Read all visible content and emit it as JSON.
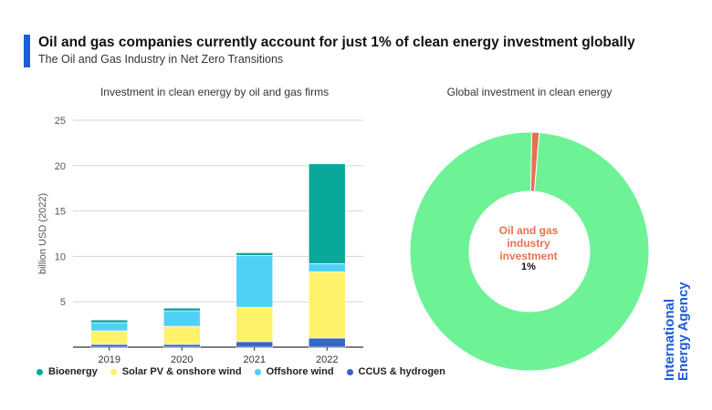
{
  "header": {
    "title": "Oil and gas companies currently account for just 1% of clean energy investment globally",
    "subtitle": "The Oil and Gas Industry in Net Zero Transitions"
  },
  "logo": {
    "line1": "International",
    "line2": "Energy Agency"
  },
  "legend": [
    {
      "label": "Bioenergy",
      "color": "#0aa89a"
    },
    {
      "label": "Solar PV & onshore wind",
      "color": "#fff26b"
    },
    {
      "label": "Offshore wind",
      "color": "#4fd1f7"
    },
    {
      "label": "CCUS & hydrogen",
      "color": "#3567c9"
    }
  ],
  "chart_data": [
    {
      "type": "bar",
      "stacked": true,
      "title": "Investment in clean energy by oil and gas firms",
      "ylabel": "billion USD (2022)",
      "ylim": [
        0,
        25
      ],
      "yticks": [
        5,
        10,
        15,
        20,
        25
      ],
      "grid": true,
      "categories": [
        "2019",
        "2020",
        "2021",
        "2022"
      ],
      "series": [
        {
          "name": "CCUS & hydrogen",
          "color": "#3567c9",
          "values": [
            0.3,
            0.3,
            0.6,
            1.0
          ]
        },
        {
          "name": "Solar PV & onshore wind",
          "color": "#fff26b",
          "values": [
            1.5,
            2.0,
            3.8,
            7.3
          ]
        },
        {
          "name": "Offshore wind",
          "color": "#4fd1f7",
          "values": [
            0.9,
            1.7,
            5.7,
            0.9
          ]
        },
        {
          "name": "Bioenergy",
          "color": "#0aa89a",
          "values": [
            0.3,
            0.3,
            0.3,
            11.0
          ]
        }
      ],
      "legend_position": "bottom"
    },
    {
      "type": "pie",
      "donut": true,
      "title": "Global investment in clean energy",
      "slices": [
        {
          "label": "Oil and gas industry investment",
          "value": 1,
          "display": "1%",
          "color": "#e8704f"
        },
        {
          "label": "",
          "value": 99,
          "color": "#6ef296"
        }
      ]
    }
  ]
}
